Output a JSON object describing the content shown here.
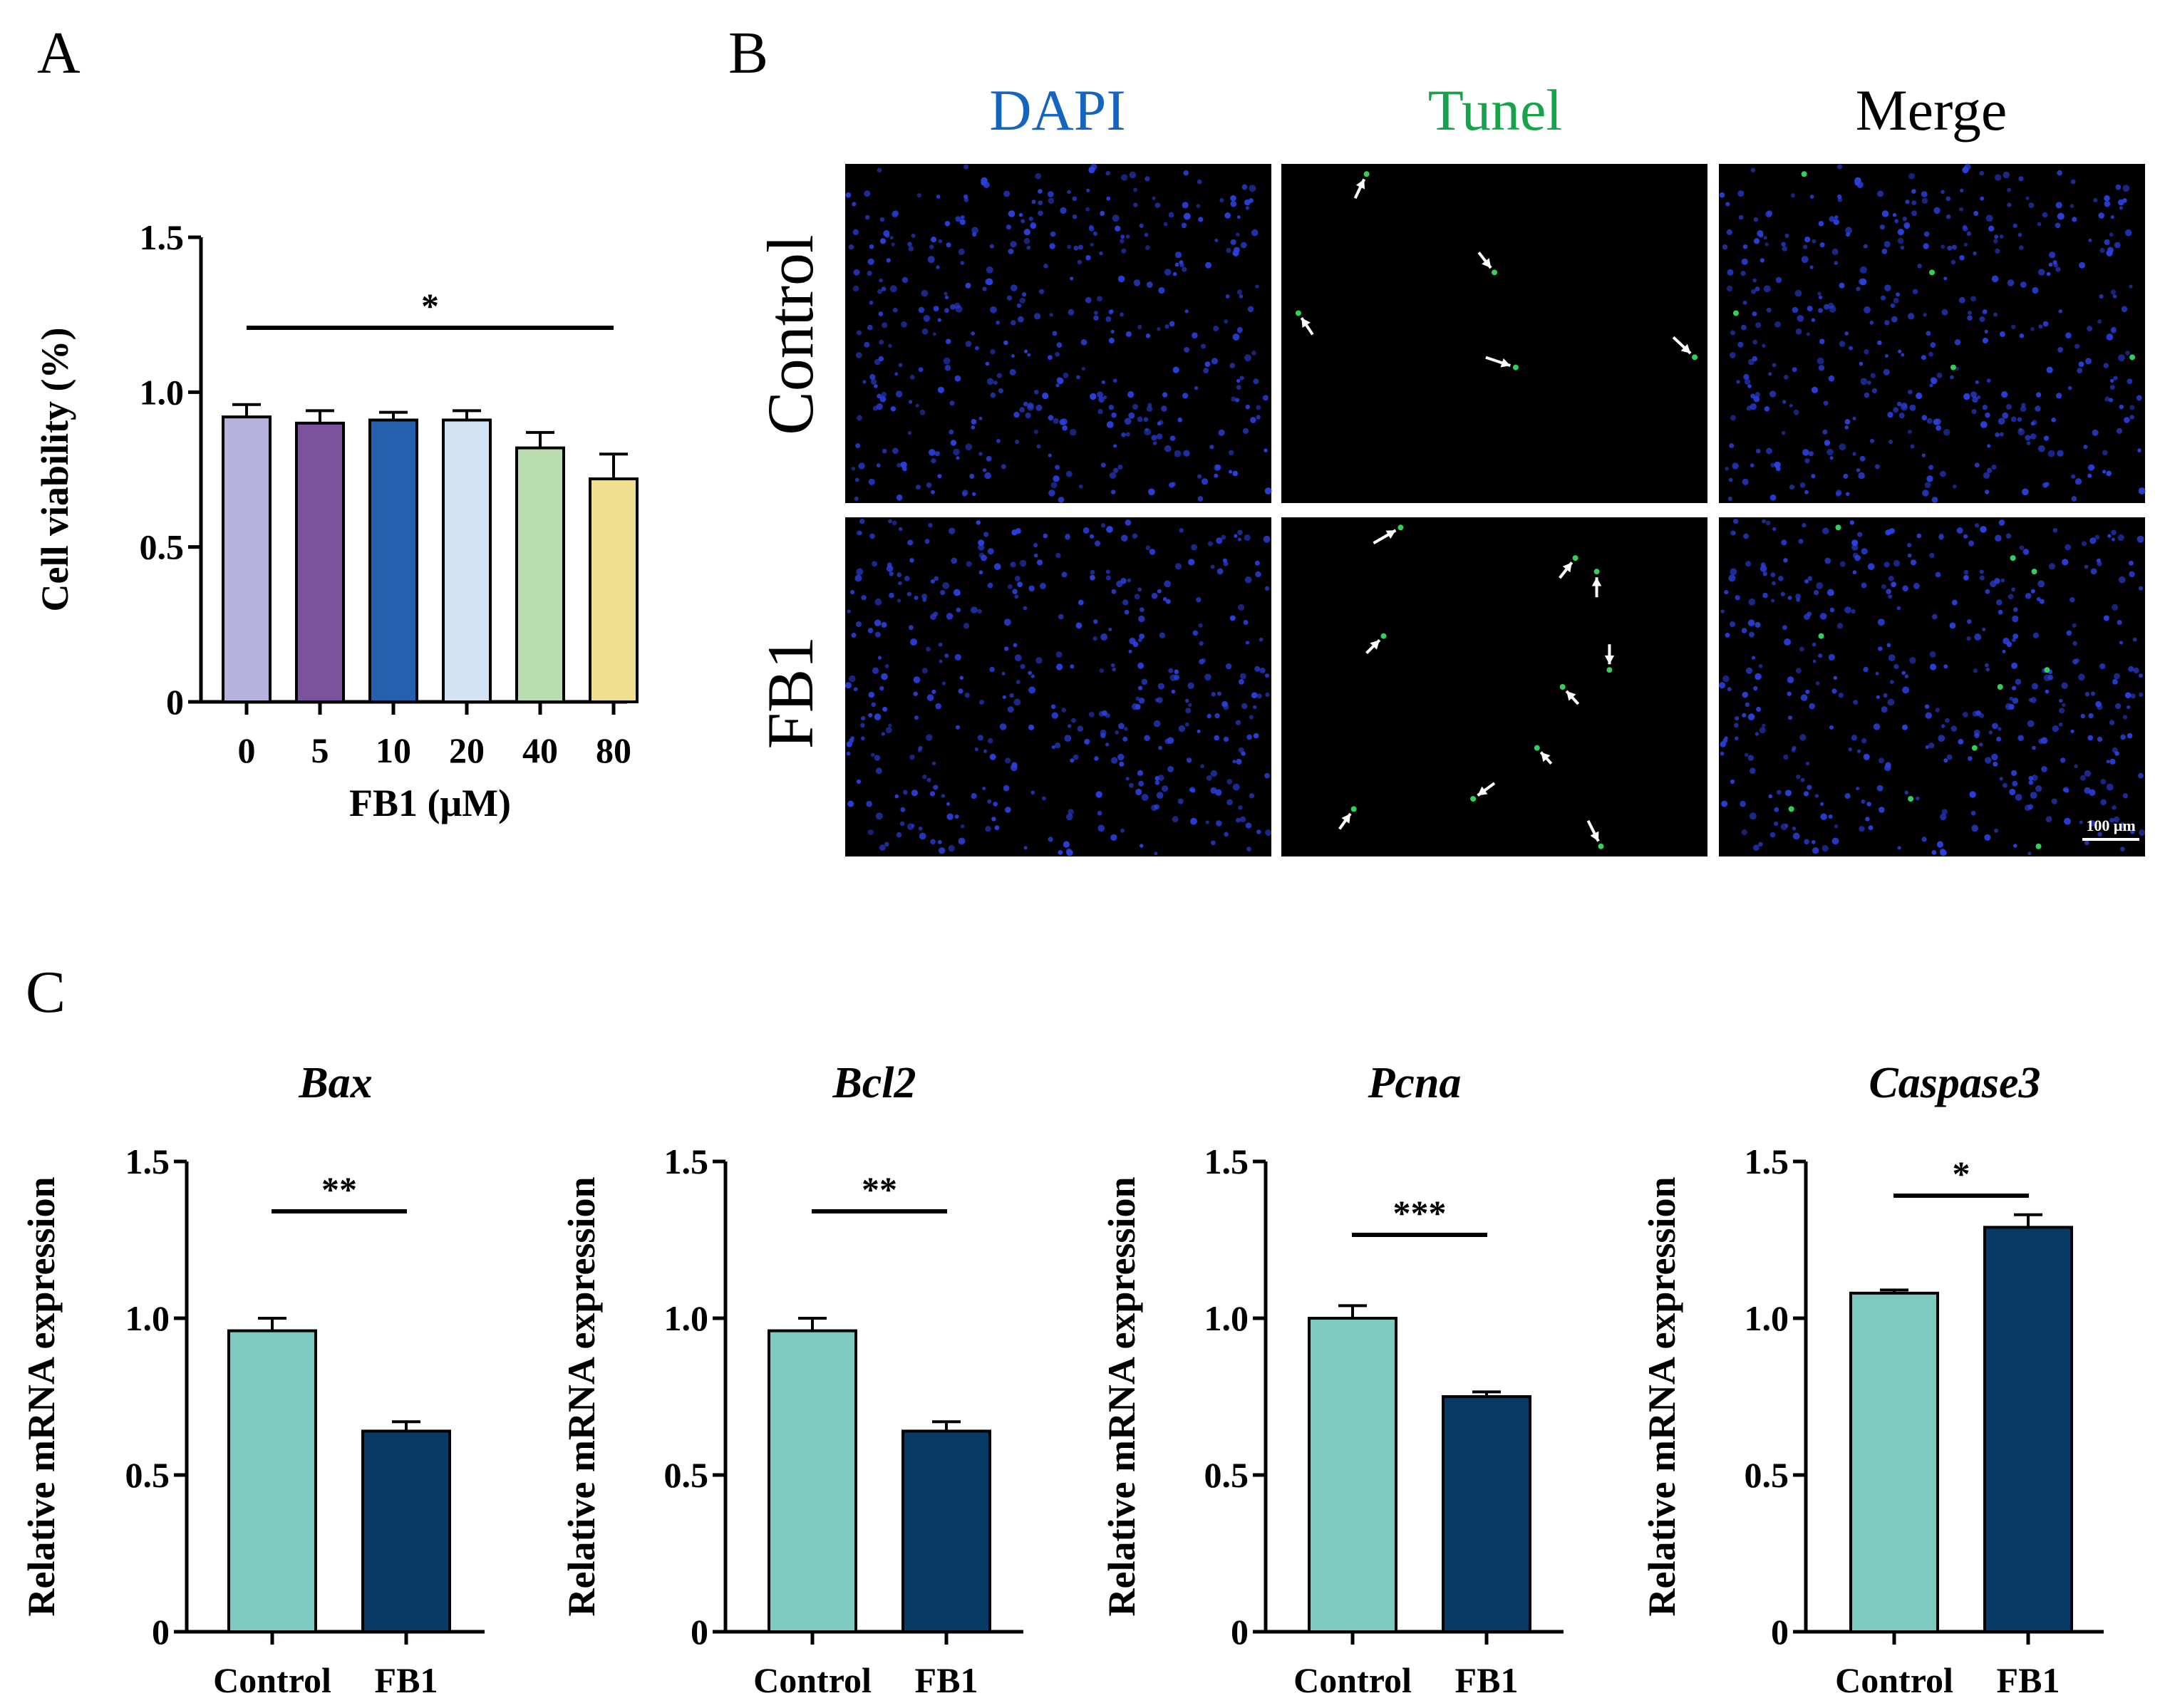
{
  "panels": {
    "a": "A",
    "b": "B",
    "c": "C"
  },
  "panel_b": {
    "channels": [
      "DAPI",
      "Tunel",
      "Merge"
    ],
    "rows": [
      "Control",
      "FB1"
    ],
    "scale_bar": "100 μm",
    "colors": {
      "dapi": "#1565c0",
      "tunel": "#16a34a",
      "merge": "#000000",
      "nuclei": "#2a3fdc",
      "dot": "#31d05a",
      "image_bg": "#000000"
    },
    "tunel_counts": {
      "Control": 5,
      "FB1": 10
    }
  },
  "chart_data": [
    {
      "id": "viability",
      "type": "bar",
      "title": "",
      "xlabel": "FB1 (μM)",
      "ylabel": "Cell viability (%)",
      "categories": [
        "0",
        "5",
        "10",
        "20",
        "40",
        "80"
      ],
      "values": [
        0.92,
        0.9,
        0.91,
        0.91,
        0.82,
        0.72
      ],
      "errors": [
        0.04,
        0.04,
        0.025,
        0.03,
        0.05,
        0.08
      ],
      "colors": [
        "#b5b3dc",
        "#7b529c",
        "#2460ad",
        "#d3e3f6",
        "#b8ddb0",
        "#f1df90"
      ],
      "ylim": [
        0,
        1.5
      ],
      "yticks": [
        "0",
        "0.5",
        "1.0",
        "1.5"
      ],
      "significance": [
        {
          "from": "0",
          "to": "80",
          "label": "*"
        }
      ]
    },
    {
      "id": "bax",
      "type": "bar",
      "title": "Bax",
      "xlabel": "",
      "ylabel": "Relative mRNA expression",
      "categories": [
        "Control",
        "FB1"
      ],
      "values": [
        0.96,
        0.64
      ],
      "errors": [
        0.04,
        0.03
      ],
      "colors": [
        "#7ccac0",
        "#063a64"
      ],
      "ylim": [
        0,
        1.5
      ],
      "yticks": [
        "0",
        "0.5",
        "1.0",
        "1.5"
      ],
      "significance": [
        {
          "from": "Control",
          "to": "FB1",
          "label": "**"
        }
      ]
    },
    {
      "id": "bcl2",
      "type": "bar",
      "title": "Bcl2",
      "xlabel": "",
      "ylabel": "Relative mRNA expression",
      "categories": [
        "Control",
        "FB1"
      ],
      "values": [
        0.96,
        0.64
      ],
      "errors": [
        0.04,
        0.03
      ],
      "colors": [
        "#7ccac0",
        "#063a64"
      ],
      "ylim": [
        0,
        1.5
      ],
      "yticks": [
        "0",
        "0.5",
        "1.0",
        "1.5"
      ],
      "significance": [
        {
          "from": "Control",
          "to": "FB1",
          "label": "**"
        }
      ]
    },
    {
      "id": "pcna",
      "type": "bar",
      "title": "Pcna",
      "xlabel": "",
      "ylabel": "Relative mRNA expression",
      "categories": [
        "Control",
        "FB1"
      ],
      "values": [
        1.0,
        0.75
      ],
      "errors": [
        0.04,
        0.015
      ],
      "colors": [
        "#7ccac0",
        "#063a64"
      ],
      "ylim": [
        0,
        1.5
      ],
      "yticks": [
        "0",
        "0.5",
        "1.0",
        "1.5"
      ],
      "significance": [
        {
          "from": "Control",
          "to": "FB1",
          "label": "***"
        }
      ]
    },
    {
      "id": "caspase3",
      "type": "bar",
      "title": "Caspase3",
      "xlabel": "",
      "ylabel": "Relative mRNA expression",
      "categories": [
        "Control",
        "FB1"
      ],
      "values": [
        1.08,
        1.29
      ],
      "errors": [
        0.01,
        0.04
      ],
      "colors": [
        "#7ccac0",
        "#063a64"
      ],
      "ylim": [
        0,
        1.5
      ],
      "yticks": [
        "0",
        "0.5",
        "1.0",
        "1.5"
      ],
      "significance": [
        {
          "from": "Control",
          "to": "FB1",
          "label": "*"
        }
      ]
    }
  ]
}
